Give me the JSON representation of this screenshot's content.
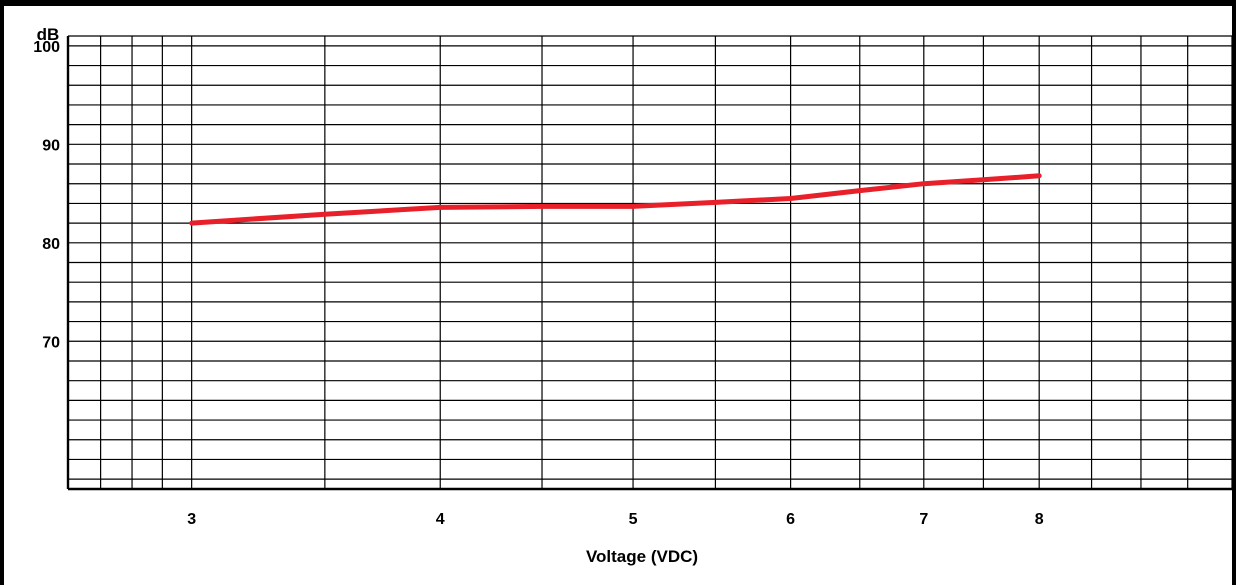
{
  "chart_data": {
    "type": "line",
    "title": "",
    "xlabel": "Voltage (VDC)",
    "ylabel": "dB",
    "xscale": "log",
    "xlim": [
      2.6,
      10
    ],
    "ylim": [
      55,
      101
    ],
    "x_ticks": [
      3,
      4,
      5,
      6,
      7,
      8
    ],
    "y_ticks": [
      100,
      90,
      80,
      70
    ],
    "grid": true,
    "line_color": "#e8202a",
    "series": [
      {
        "x": [
          3,
          3.5,
          4,
          4.5,
          5,
          5.5,
          6,
          6.5,
          7,
          7.5,
          8
        ],
        "y": [
          82.0,
          82.9,
          83.6,
          83.7,
          83.7,
          84.1,
          84.5,
          85.3,
          86.0,
          86.4,
          86.8
        ]
      }
    ]
  }
}
